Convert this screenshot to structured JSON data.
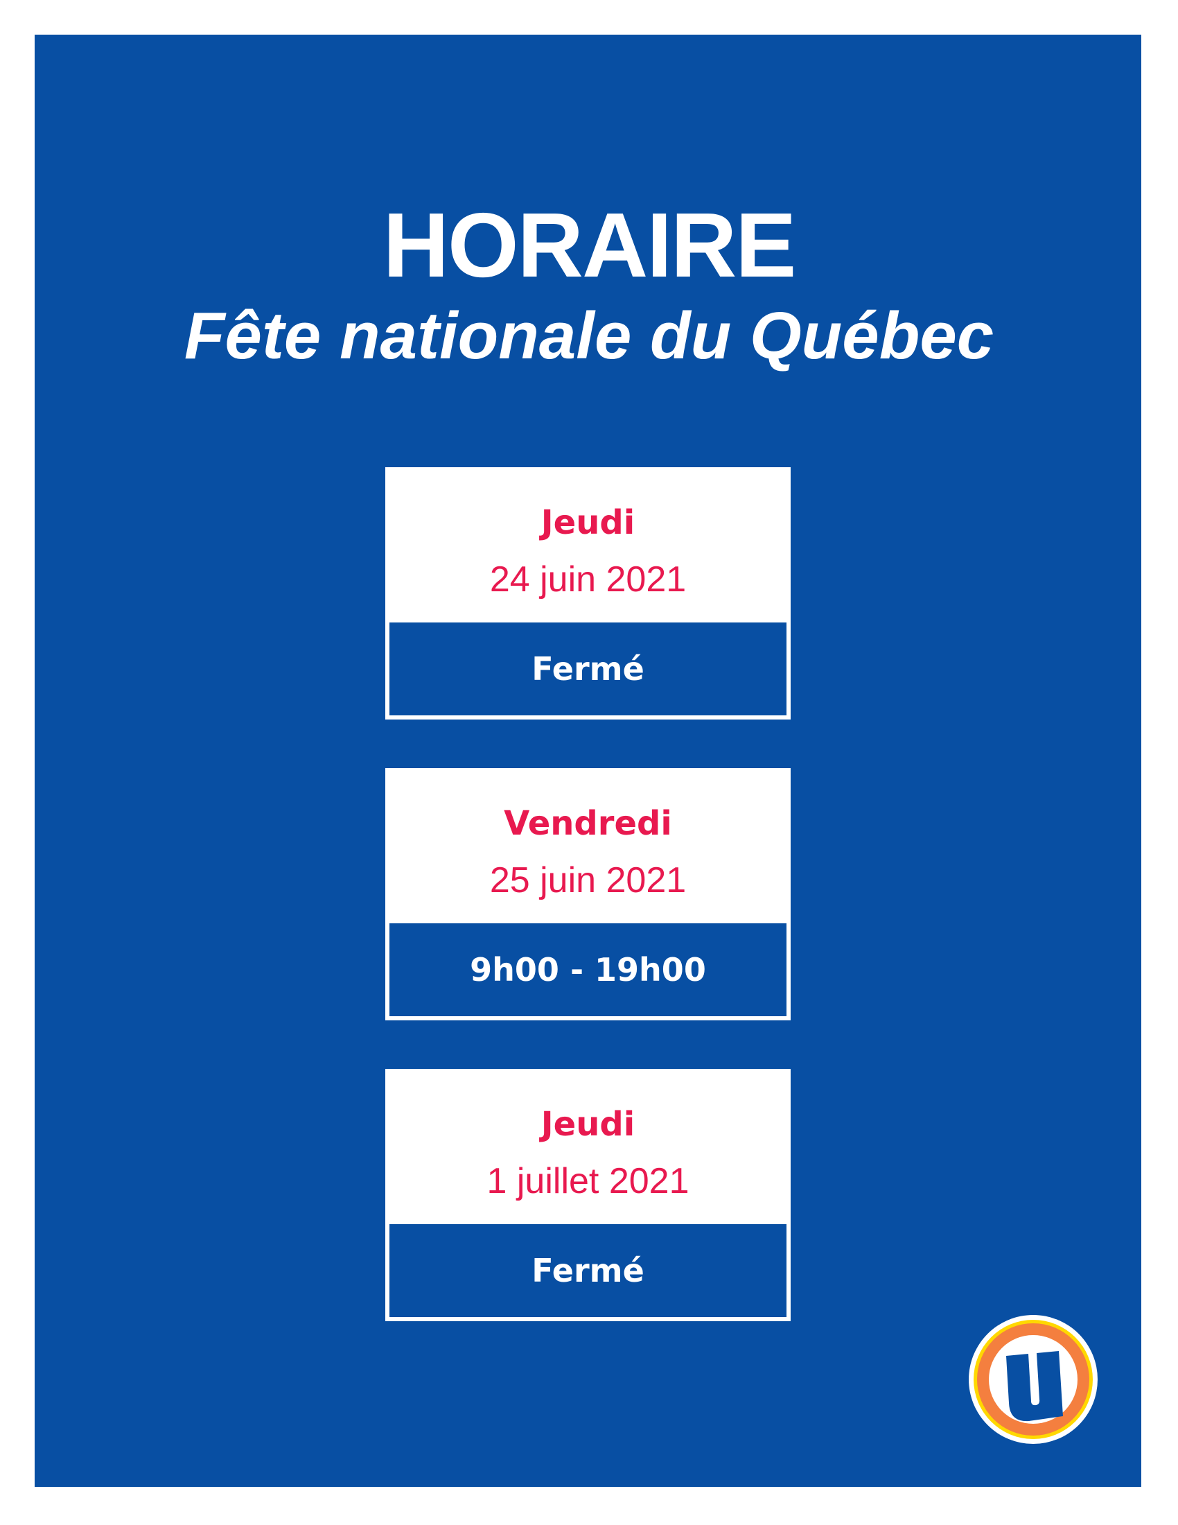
{
  "header": {
    "title": "HORAIRE",
    "subtitle": "Fête nationale du Québec"
  },
  "schedule": [
    {
      "day": "Jeudi",
      "date": "24 juin 2021",
      "hours": "Fermé"
    },
    {
      "day": "Vendredi",
      "date": "25 juin 2021",
      "hours": "9h00 - 19h00"
    },
    {
      "day": "Jeudi",
      "date": "1 juillet 2021",
      "hours": "Fermé"
    }
  ],
  "logo": {
    "icon": "u-logo",
    "text": "U"
  },
  "colors": {
    "background": "#084fa3",
    "accent": "#e8194f",
    "logo_ring": "#f47f3f",
    "logo_outer": "#ffd800"
  }
}
